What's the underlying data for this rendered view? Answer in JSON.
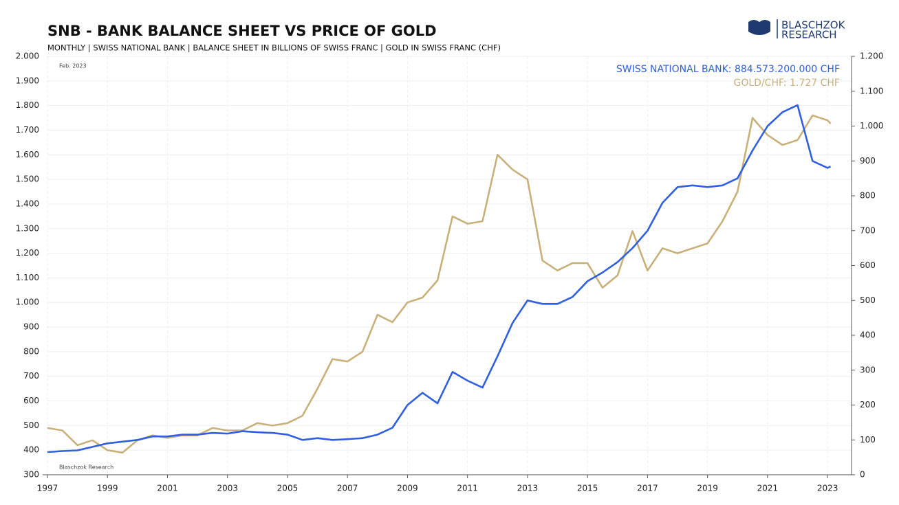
{
  "chart_data": {
    "type": "line",
    "title": "SNB - BANK BALANCE SHEET VS PRICE OF GOLD",
    "subtitle": "MONTHLY | SWISS NATIONAL BANK | BALANCE SHEET IN BILLIONS OF SWISS FRANC | GOLD IN SWISS FRANC (CHF)",
    "date_note": "Feb. 2023",
    "watermark": "Blaschzok Research",
    "logo_lines": [
      "BLASCHZOK",
      "RESEARCH"
    ],
    "x": [
      1997.0,
      1997.5,
      1998.0,
      1998.5,
      1999.0,
      1999.5,
      2000.0,
      2000.5,
      2001.0,
      2001.5,
      2002.0,
      2002.5,
      2003.0,
      2003.5,
      2004.0,
      2004.5,
      2005.0,
      2005.5,
      2006.0,
      2006.5,
      2007.0,
      2007.5,
      2008.0,
      2008.5,
      2009.0,
      2009.5,
      2010.0,
      2010.5,
      2011.0,
      2011.5,
      2012.0,
      2012.5,
      2013.0,
      2013.5,
      2014.0,
      2014.5,
      2015.0,
      2015.5,
      2016.0,
      2016.5,
      2017.0,
      2017.5,
      2018.0,
      2018.5,
      2019.0,
      2019.5,
      2020.0,
      2020.5,
      2021.0,
      2021.5,
      2022.0,
      2022.5,
      2023.0,
      2023.1
    ],
    "series": [
      {
        "name": "SWISS NATIONAL BANK: 884.573.200.000 CHF",
        "color": "#2f5fe0",
        "axis": "y2",
        "values": [
          65,
          68,
          70,
          80,
          90,
          95,
          100,
          110,
          110,
          115,
          115,
          120,
          118,
          125,
          122,
          120,
          115,
          100,
          105,
          100,
          102,
          105,
          115,
          135,
          200,
          235,
          205,
          295,
          270,
          250,
          340,
          435,
          500,
          490,
          490,
          510,
          555,
          580,
          610,
          650,
          700,
          780,
          825,
          830,
          825,
          830,
          850,
          930,
          1000,
          1040,
          1060,
          900,
          880,
          884.573
        ]
      },
      {
        "name": "GOLD/CHF: 1.727 CHF",
        "color": "#c8b07a",
        "values": [
          490,
          480,
          420,
          440,
          400,
          390,
          440,
          460,
          450,
          460,
          460,
          490,
          480,
          480,
          510,
          500,
          510,
          540,
          650,
          770,
          760,
          800,
          950,
          920,
          1000,
          1020,
          1090,
          1350,
          1320,
          1330,
          1600,
          1540,
          1500,
          1170,
          1130,
          1160,
          1160,
          1060,
          1110,
          1290,
          1130,
          1220,
          1200,
          1220,
          1240,
          1330,
          1450,
          1750,
          1680,
          1640,
          1660,
          1760,
          1740,
          1727
        ]
      }
    ],
    "xlim": [
      1997,
      2023.8
    ],
    "xticks": [
      1997,
      1999,
      2001,
      2003,
      2005,
      2007,
      2009,
      2011,
      2013,
      2015,
      2017,
      2019,
      2021,
      2023
    ],
    "ylim": [
      300,
      2000
    ],
    "yticks": [
      300,
      400,
      500,
      600,
      700,
      800,
      900,
      {
        "value": 1000,
        "label": "1.000"
      },
      {
        "value": 1100,
        "label": "1.100"
      },
      {
        "value": 1200,
        "label": "1.200"
      },
      {
        "value": 1300,
        "label": "1.300"
      },
      {
        "value": 1400,
        "label": "1.400"
      },
      {
        "value": 1500,
        "label": "1.500"
      },
      {
        "value": 1600,
        "label": "1.600"
      },
      {
        "value": 1700,
        "label": "1.700"
      },
      {
        "value": 1800,
        "label": "1.800"
      },
      {
        "value": 1900,
        "label": "1.900"
      },
      {
        "value": 2000,
        "label": "2.000"
      }
    ],
    "y2lim": [
      0,
      1200
    ],
    "y2ticks": [
      0,
      100,
      200,
      300,
      400,
      500,
      600,
      700,
      800,
      900,
      {
        "value": 1000,
        "label": "1.000"
      },
      {
        "value": 1100,
        "label": "1.100"
      },
      {
        "value": 1200,
        "label": "1.200"
      }
    ],
    "grid": true
  }
}
